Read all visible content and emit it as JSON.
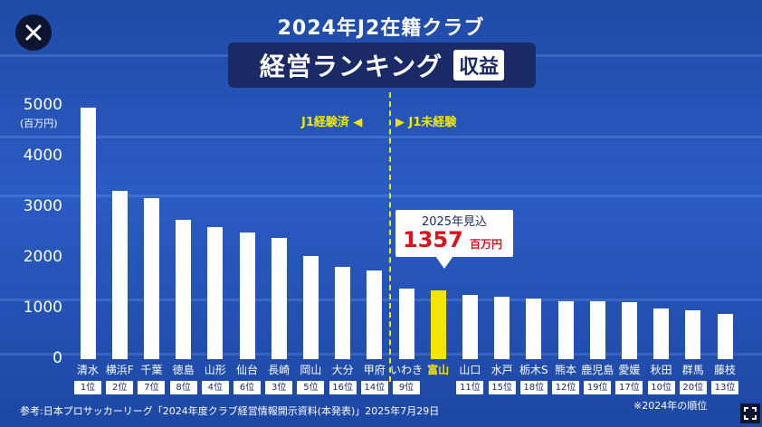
{
  "title": "2024年J2在籍クラブ",
  "subtitle": "経営ランキング",
  "badge": "収益",
  "divider_labels": {
    "left": "J1経験済 ◀",
    "right": "▶ J1未経験"
  },
  "callout": {
    "label": "2025年見込",
    "value": "1357",
    "unit": "百万円"
  },
  "footnote": "参考:日本プロサッカーリーグ「2024年度クラブ経営情報開示資料(本発表)」2025年7月29日",
  "rank_note": "※2024年の順位",
  "colors": {
    "bar": "#ffffff",
    "highlight": "#f2e600",
    "background": "#2b5cc4"
  },
  "chart_data": {
    "type": "bar",
    "ylim": [
      0,
      5000
    ],
    "yticks": [
      0,
      1000,
      2000,
      3000,
      4000,
      5000
    ],
    "yunit": "(百万円)",
    "categories": [
      "清水",
      "横浜F",
      "千葉",
      "徳島",
      "山形",
      "仙台",
      "長崎",
      "岡山",
      "大分",
      "甲府",
      "いわき",
      "富山",
      "山口",
      "水戸",
      "栃木S",
      "熊本",
      "鹿児島",
      "愛媛",
      "秋田",
      "群馬",
      "藤枝"
    ],
    "values": [
      4960,
      3320,
      3180,
      2750,
      2600,
      2500,
      2400,
      2030,
      1820,
      1750,
      1390,
      1357,
      1270,
      1240,
      1190,
      1150,
      1150,
      1130,
      1000,
      970,
      900
    ],
    "ranks": [
      "1位",
      "2位",
      "7位",
      "8位",
      "4位",
      "6位",
      "3位",
      "5位",
      "16位",
      "14位",
      "9位",
      "",
      "11位",
      "15位",
      "18位",
      "12位",
      "19位",
      "17位",
      "10位",
      "20位",
      "13位"
    ],
    "highlight": "富山"
  }
}
